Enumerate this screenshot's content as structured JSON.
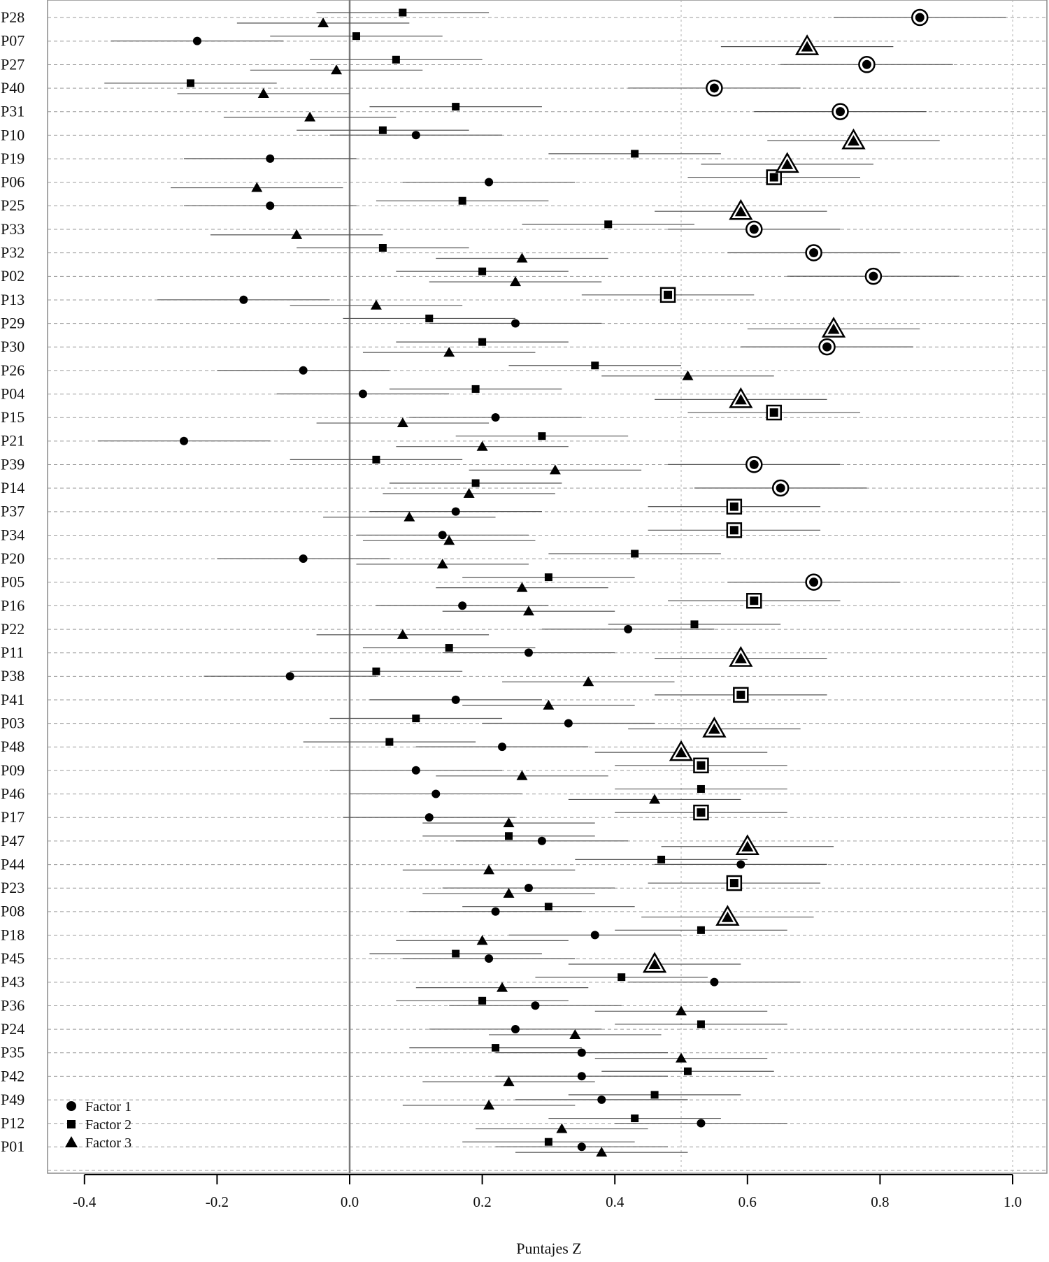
{
  "chart_data": {
    "type": "scatter",
    "xlabel": "Puntajes Z",
    "ylabel": "",
    "xlim": [
      -0.45,
      1.05
    ],
    "xticks": [
      "-0.4",
      "-0.2",
      "0.0",
      "0.2",
      "0.4",
      "0.6",
      "0.8",
      "1.0"
    ],
    "grid": "dashed horizontal lines per participant; dotted vertical lines at 0.5 and 1.0; solid vertical reference line at 0",
    "legend_position": "bottom-left",
    "legend": [
      {
        "name": "Factor 1",
        "marker": "circle"
      },
      {
        "name": "Factor 2",
        "marker": "square"
      },
      {
        "name": "Factor 3",
        "marker": "triangle"
      }
    ],
    "ci_half_width": 0.13,
    "note": "Outlined (double) markers indicate the factor on which the participant loads highest.",
    "categories": [
      "P28",
      "P07",
      "P27",
      "P40",
      "P31",
      "P10",
      "P19",
      "P06",
      "P25",
      "P33",
      "P32",
      "P02",
      "P13",
      "P29",
      "P30",
      "P26",
      "P04",
      "P15",
      "P21",
      "P39",
      "P14",
      "P37",
      "P34",
      "P20",
      "P05",
      "P16",
      "P22",
      "P11",
      "P38",
      "P41",
      "P03",
      "P48",
      "P09",
      "P46",
      "P17",
      "P47",
      "P44",
      "P23",
      "P08",
      "P18",
      "P45",
      "P43",
      "P36",
      "P24",
      "P35",
      "P42",
      "P49",
      "P12",
      "P01"
    ],
    "series": [
      {
        "name": "Factor 1",
        "marker": "circle",
        "values": [
          0.86,
          -0.23,
          0.78,
          0.55,
          0.74,
          0.1,
          -0.12,
          0.21,
          -0.12,
          0.61,
          0.7,
          0.79,
          -0.16,
          0.25,
          0.72,
          -0.07,
          0.02,
          0.22,
          -0.25,
          0.61,
          0.65,
          0.16,
          0.14,
          -0.07,
          0.7,
          0.17,
          0.42,
          0.27,
          -0.09,
          0.16,
          0.33,
          0.23,
          0.1,
          0.13,
          0.12,
          0.29,
          0.59,
          0.27,
          0.22,
          0.37,
          0.21,
          0.55,
          0.28,
          0.25,
          0.35,
          0.35,
          0.38,
          0.53,
          0.35
        ]
      },
      {
        "name": "Factor 2",
        "marker": "square",
        "values": [
          0.08,
          0.01,
          0.07,
          -0.24,
          0.16,
          0.05,
          0.43,
          0.64,
          0.17,
          0.39,
          0.05,
          0.2,
          0.48,
          0.12,
          0.2,
          0.37,
          0.19,
          0.64,
          0.29,
          0.04,
          0.19,
          0.58,
          0.58,
          0.43,
          0.3,
          0.61,
          0.52,
          0.15,
          0.04,
          0.59,
          0.1,
          0.06,
          0.53,
          0.53,
          0.53,
          0.24,
          0.47,
          0.58,
          0.3,
          0.53,
          0.16,
          0.41,
          0.2,
          0.53,
          0.22,
          0.51,
          0.46,
          0.43,
          0.3
        ]
      },
      {
        "name": "Factor 3",
        "marker": "triangle",
        "values": [
          -0.04,
          0.69,
          -0.02,
          -0.13,
          -0.06,
          0.76,
          0.66,
          -0.14,
          0.59,
          -0.08,
          0.26,
          0.25,
          0.04,
          0.73,
          0.15,
          0.51,
          0.59,
          0.08,
          0.2,
          0.31,
          0.18,
          0.09,
          0.15,
          0.14,
          0.26,
          0.27,
          0.08,
          0.59,
          0.36,
          0.3,
          0.55,
          0.5,
          0.26,
          0.46,
          0.24,
          0.6,
          0.21,
          0.24,
          0.57,
          0.2,
          0.46,
          0.23,
          0.5,
          0.34,
          0.5,
          0.24,
          0.21,
          0.32,
          0.38
        ]
      }
    ],
    "highlighted": [
      {
        "participant": "P28",
        "factor": "Factor 1"
      },
      {
        "participant": "P07",
        "factor": "Factor 3"
      },
      {
        "participant": "P27",
        "factor": "Factor 1"
      },
      {
        "participant": "P40",
        "factor": "Factor 1"
      },
      {
        "participant": "P31",
        "factor": "Factor 1"
      },
      {
        "participant": "P10",
        "factor": "Factor 3"
      },
      {
        "participant": "P19",
        "factor": "Factor 3"
      },
      {
        "participant": "P06",
        "factor": "Factor 2"
      },
      {
        "participant": "P25",
        "factor": "Factor 3"
      },
      {
        "participant": "P33",
        "factor": "Factor 1"
      },
      {
        "participant": "P32",
        "factor": "Factor 1"
      },
      {
        "participant": "P02",
        "factor": "Factor 1"
      },
      {
        "participant": "P13",
        "factor": "Factor 2"
      },
      {
        "participant": "P29",
        "factor": "Factor 3"
      },
      {
        "participant": "P30",
        "factor": "Factor 1"
      },
      {
        "participant": "P04",
        "factor": "Factor 3"
      },
      {
        "participant": "P15",
        "factor": "Factor 2"
      },
      {
        "participant": "P39",
        "factor": "Factor 1"
      },
      {
        "participant": "P14",
        "factor": "Factor 1"
      },
      {
        "participant": "P37",
        "factor": "Factor 2"
      },
      {
        "participant": "P34",
        "factor": "Factor 2"
      },
      {
        "participant": "P05",
        "factor": "Factor 1"
      },
      {
        "participant": "P16",
        "factor": "Factor 2"
      },
      {
        "participant": "P11",
        "factor": "Factor 3"
      },
      {
        "participant": "P41",
        "factor": "Factor 2"
      },
      {
        "participant": "P03",
        "factor": "Factor 3"
      },
      {
        "participant": "P48",
        "factor": "Factor 3"
      },
      {
        "participant": "P09",
        "factor": "Factor 2"
      },
      {
        "participant": "P17",
        "factor": "Factor 2"
      },
      {
        "participant": "P47",
        "factor": "Factor 3"
      },
      {
        "participant": "P23",
        "factor": "Factor 2"
      },
      {
        "participant": "P08",
        "factor": "Factor 3"
      },
      {
        "participant": "P45",
        "factor": "Factor 3"
      }
    ]
  }
}
